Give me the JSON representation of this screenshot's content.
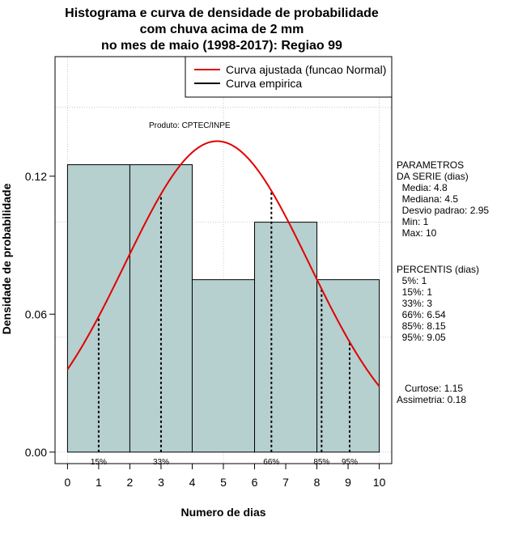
{
  "chart_data": {
    "type": "bar",
    "title_lines": [
      "Histograma e curva de densidade de probabilidade",
      "com chuva acima de 2 mm",
      "no mes de maio (1998-2017): Regiao 99"
    ],
    "xlabel": "Numero de dias",
    "ylabel": "Densidade de probabilidade",
    "xlim": [
      -0.4,
      10.4
    ],
    "ylim": [
      -0.005,
      0.172
    ],
    "x_ticks": [
      0,
      1,
      2,
      3,
      4,
      5,
      6,
      7,
      8,
      9,
      10
    ],
    "y_ticks": [
      "0.00",
      "0.06",
      "0.12"
    ],
    "y_tick_values": [
      0,
      0.06,
      0.12
    ],
    "grid": true,
    "bins": [
      {
        "start": 0,
        "end": 2,
        "density": 0.125
      },
      {
        "start": 2,
        "end": 4,
        "density": 0.125
      },
      {
        "start": 4,
        "end": 6,
        "density": 0.075
      },
      {
        "start": 6,
        "end": 8,
        "density": 0.1
      },
      {
        "start": 8,
        "end": 10,
        "density": 0.075
      }
    ],
    "bar_color": "#b6cfcf",
    "normal_fit": {
      "mean": 4.8,
      "sd": 2.95,
      "color": "#e00000"
    },
    "percentile_lines": [
      {
        "label": "15%",
        "x": 1
      },
      {
        "label": "33%",
        "x": 3
      },
      {
        "label": "66%",
        "x": 6.54
      },
      {
        "label": "85%",
        "x": 8.15
      },
      {
        "label": "95%",
        "x": 9.05
      }
    ],
    "legend": {
      "position": "top-right",
      "items": [
        {
          "label": "Curva ajustada (funcao Normal)",
          "color": "#e00000"
        },
        {
          "label": "Curva empirica",
          "color": "#000000"
        }
      ]
    },
    "annotation": "Produto: CPTEC/INPE"
  },
  "side_panel": {
    "parametros": [
      "PARAMETROS",
      "DA SERIE (dias)",
      "  Media: 4.8",
      "  Mediana: 4.5",
      "  Desvio padrao: 2.95",
      "  Min: 1",
      "  Max: 10"
    ],
    "percentis": [
      "PERCENTIS (dias)",
      "  5%: 1",
      "  15%: 1",
      "  33%: 3",
      "  66%: 6.54",
      "  85%: 8.15",
      "  95%: 9.05"
    ],
    "forma": [
      "   Curtose: 1.15",
      "Assimetria: 0.18"
    ]
  }
}
